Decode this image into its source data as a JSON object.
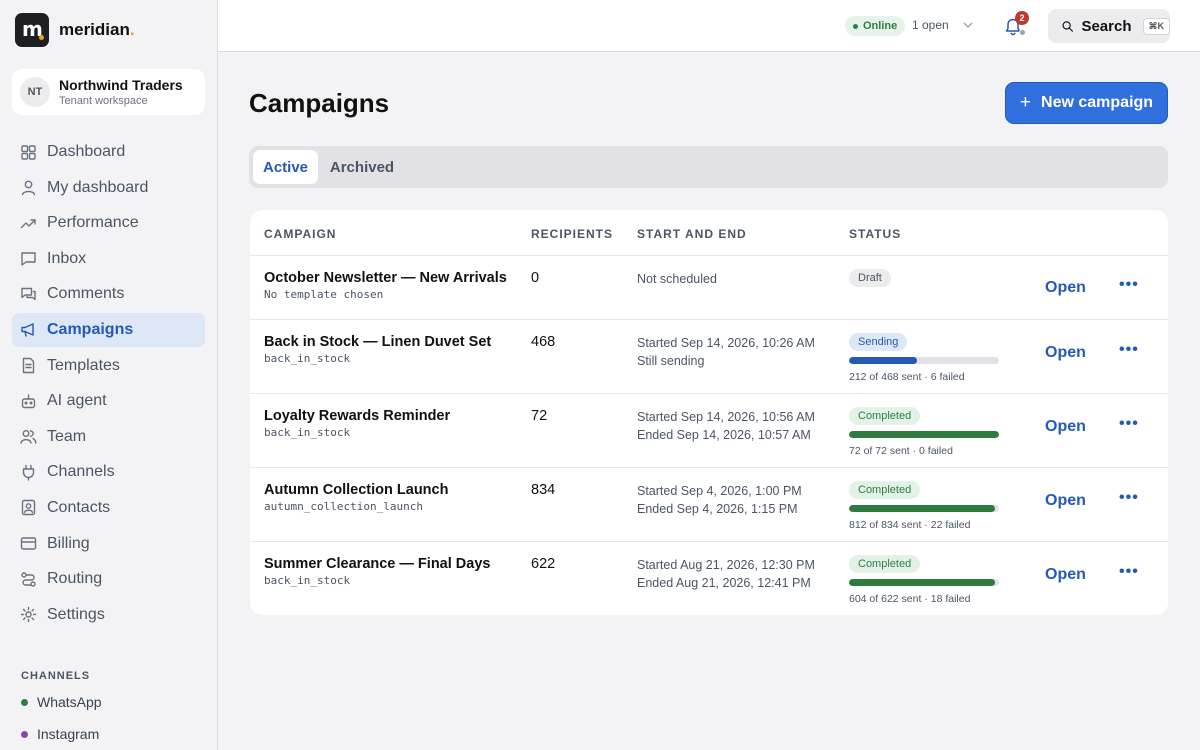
{
  "brand": {
    "name": "meridian",
    "dot": ".",
    "logo_letter": "m"
  },
  "tenant": {
    "initials": "NT",
    "name": "Northwind Traders",
    "subtitle": "Tenant workspace"
  },
  "sidebar": {
    "items": [
      {
        "label": "Dashboard",
        "icon": "grid-icon"
      },
      {
        "label": "My dashboard",
        "icon": "user-icon"
      },
      {
        "label": "Performance",
        "icon": "trend-icon"
      },
      {
        "label": "Inbox",
        "icon": "message-icon"
      },
      {
        "label": "Comments",
        "icon": "comments-icon"
      },
      {
        "label": "Campaigns",
        "icon": "megaphone-icon",
        "active": true
      },
      {
        "label": "Templates",
        "icon": "document-icon"
      },
      {
        "label": "AI agent",
        "icon": "bot-icon"
      },
      {
        "label": "Team",
        "icon": "team-icon"
      },
      {
        "label": "Channels",
        "icon": "plug-icon"
      },
      {
        "label": "Contacts",
        "icon": "contact-icon"
      },
      {
        "label": "Billing",
        "icon": "card-icon"
      },
      {
        "label": "Routing",
        "icon": "routing-icon"
      },
      {
        "label": "Settings",
        "icon": "gear-icon"
      }
    ],
    "channels_heading": "CHANNELS",
    "channels": [
      {
        "label": "WhatsApp",
        "color": "#2e7d46"
      },
      {
        "label": "Instagram",
        "color": "#8e44ad"
      }
    ]
  },
  "topbar": {
    "status": "Online",
    "open_count": "1 open",
    "notifications": "2",
    "search_label": "Search",
    "search_shortcut": "⌘K"
  },
  "main": {
    "title": "Campaigns",
    "new_button": "New campaign",
    "tabs": [
      {
        "label": "Active",
        "active": true
      },
      {
        "label": "Archived",
        "active": false
      }
    ],
    "table": {
      "headers": [
        "CAMPAIGN",
        "RECIPIENTS",
        "START AND END",
        "STATUS"
      ],
      "open_label": "Open",
      "more_label": "•••",
      "rows": [
        {
          "name": "October Newsletter — New Arrivals",
          "template": "No template chosen",
          "recipients": "0",
          "date1": "Not scheduled",
          "date2": "",
          "status": "Draft",
          "status_kind": "draft",
          "progress": null,
          "progress_text": ""
        },
        {
          "name": "Back in Stock — Linen Duvet Set",
          "template": "back_in_stock",
          "recipients": "468",
          "date1": "Started Sep 14, 2026, 10:26 AM",
          "date2": "Still sending",
          "status": "Sending",
          "status_kind": "sending",
          "progress": 0.453,
          "progress_text": "212 of 468 sent · 6 failed"
        },
        {
          "name": "Loyalty Rewards Reminder",
          "template": "back_in_stock",
          "recipients": "72",
          "date1": "Started Sep 14, 2026, 10:56 AM",
          "date2": "Ended Sep 14, 2026, 10:57 AM",
          "status": "Completed",
          "status_kind": "completed",
          "progress": 1.0,
          "progress_text": "72 of 72 sent · 0 failed"
        },
        {
          "name": "Autumn Collection Launch",
          "template": "autumn_collection_launch",
          "recipients": "834",
          "date1": "Started Sep 4, 2026, 1:00 PM",
          "date2": "Ended Sep 4, 2026, 1:15 PM",
          "status": "Completed",
          "status_kind": "completed",
          "progress": 0.974,
          "progress_text": "812 of 834 sent · 22 failed"
        },
        {
          "name": "Summer Clearance — Final Days",
          "template": "back_in_stock",
          "recipients": "622",
          "date1": "Started Aug 21, 2026, 12:30 PM",
          "date2": "Ended Aug 21, 2026, 12:41 PM",
          "status": "Completed",
          "status_kind": "completed",
          "progress": 0.971,
          "progress_text": "604 of 622 sent · 18 failed"
        }
      ]
    }
  },
  "colors": {
    "accent": "#2f6fde",
    "accent_dark": "#2459b8",
    "success": "#2e7d46",
    "badge": "#c0392b",
    "brand_dot": "#f0a21e"
  }
}
